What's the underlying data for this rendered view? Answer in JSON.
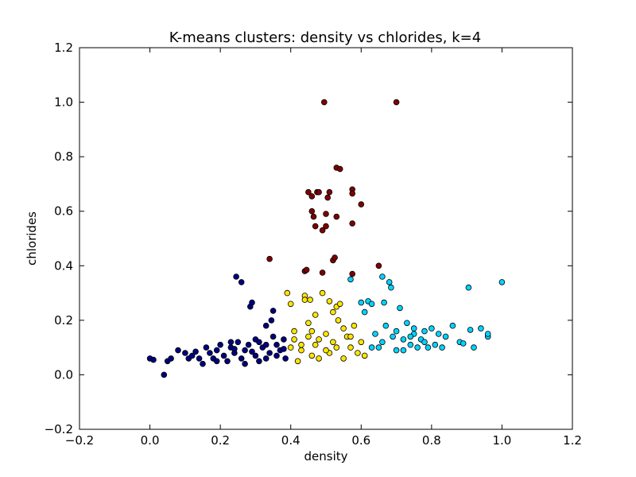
{
  "chart_data": {
    "type": "scatter",
    "title": "K-means clusters: density vs chlorides, k=4",
    "xlabel": "density",
    "ylabel": "chlorides",
    "xlim": [
      -0.2,
      1.2
    ],
    "ylim": [
      -0.2,
      1.2
    ],
    "xticks": [
      "−0.2",
      "0.0",
      "0.2",
      "0.4",
      "0.6",
      "0.8",
      "1.0",
      "1.2"
    ],
    "yticks": [
      "−0.2",
      "0.0",
      "0.2",
      "0.4",
      "0.6",
      "0.8",
      "1.0",
      "1.2"
    ],
    "grid": false,
    "series": [
      {
        "color": "#00007f",
        "points": [
          [
            0.0,
            0.06
          ],
          [
            0.01,
            0.055
          ],
          [
            0.04,
            0.0
          ],
          [
            0.05,
            0.05
          ],
          [
            0.06,
            0.06
          ],
          [
            0.08,
            0.09
          ],
          [
            0.1,
            0.08
          ],
          [
            0.11,
            0.06
          ],
          [
            0.12,
            0.07
          ],
          [
            0.13,
            0.085
          ],
          [
            0.14,
            0.06
          ],
          [
            0.15,
            0.04
          ],
          [
            0.16,
            0.1
          ],
          [
            0.17,
            0.08
          ],
          [
            0.18,
            0.06
          ],
          [
            0.19,
            0.09
          ],
          [
            0.2,
            0.11
          ],
          [
            0.21,
            0.07
          ],
          [
            0.22,
            0.05
          ],
          [
            0.23,
            0.1
          ],
          [
            0.24,
            0.08
          ],
          [
            0.245,
            0.36
          ],
          [
            0.25,
            0.12
          ],
          [
            0.26,
            0.34
          ],
          [
            0.26,
            0.06
          ],
          [
            0.27,
            0.09
          ],
          [
            0.28,
            0.11
          ],
          [
            0.285,
            0.25
          ],
          [
            0.29,
            0.265
          ],
          [
            0.3,
            0.07
          ],
          [
            0.31,
            0.12
          ],
          [
            0.32,
            0.1
          ],
          [
            0.33,
            0.18
          ],
          [
            0.33,
            0.06
          ],
          [
            0.34,
            0.08
          ],
          [
            0.345,
            0.2
          ],
          [
            0.35,
            0.235
          ],
          [
            0.35,
            0.14
          ],
          [
            0.36,
            0.11
          ],
          [
            0.37,
            0.09
          ],
          [
            0.38,
            0.13
          ],
          [
            0.385,
            0.06
          ],
          [
            0.29,
            0.085
          ],
          [
            0.31,
            0.05
          ],
          [
            0.23,
            0.12
          ],
          [
            0.27,
            0.04
          ],
          [
            0.19,
            0.05
          ],
          [
            0.24,
            0.095
          ],
          [
            0.33,
            0.11
          ],
          [
            0.36,
            0.07
          ],
          [
            0.38,
            0.095
          ],
          [
            0.3,
            0.13
          ]
        ]
      },
      {
        "color": "#ffe600",
        "points": [
          [
            0.39,
            0.3
          ],
          [
            0.4,
            0.26
          ],
          [
            0.41,
            0.13
          ],
          [
            0.42,
            0.05
          ],
          [
            0.43,
            0.09
          ],
          [
            0.44,
            0.29
          ],
          [
            0.44,
            0.275
          ],
          [
            0.45,
            0.14
          ],
          [
            0.455,
            0.275
          ],
          [
            0.46,
            0.07
          ],
          [
            0.47,
            0.11
          ],
          [
            0.48,
            0.06
          ],
          [
            0.49,
            0.3
          ],
          [
            0.5,
            0.15
          ],
          [
            0.51,
            0.27
          ],
          [
            0.51,
            0.08
          ],
          [
            0.52,
            0.12
          ],
          [
            0.53,
            0.25
          ],
          [
            0.535,
            0.2
          ],
          [
            0.54,
            0.26
          ],
          [
            0.55,
            0.06
          ],
          [
            0.56,
            0.14
          ],
          [
            0.57,
            0.1
          ],
          [
            0.58,
            0.18
          ],
          [
            0.59,
            0.08
          ],
          [
            0.6,
            0.12
          ],
          [
            0.61,
            0.07
          ],
          [
            0.45,
            0.19
          ],
          [
            0.47,
            0.22
          ],
          [
            0.52,
            0.23
          ],
          [
            0.41,
            0.16
          ],
          [
            0.43,
            0.11
          ],
          [
            0.48,
            0.13
          ],
          [
            0.5,
            0.09
          ],
          [
            0.53,
            0.1
          ],
          [
            0.55,
            0.17
          ],
          [
            0.4,
            0.1
          ],
          [
            0.46,
            0.16
          ],
          [
            0.57,
            0.14
          ]
        ]
      },
      {
        "color": "#00d4ff",
        "points": [
          [
            0.57,
            0.35
          ],
          [
            0.6,
            0.265
          ],
          [
            0.61,
            0.23
          ],
          [
            0.62,
            0.27
          ],
          [
            0.63,
            0.26
          ],
          [
            0.64,
            0.15
          ],
          [
            0.65,
            0.1
          ],
          [
            0.66,
            0.36
          ],
          [
            0.665,
            0.265
          ],
          [
            0.68,
            0.34
          ],
          [
            0.685,
            0.32
          ],
          [
            0.69,
            0.14
          ],
          [
            0.7,
            0.09
          ],
          [
            0.71,
            0.245
          ],
          [
            0.72,
            0.13
          ],
          [
            0.73,
            0.19
          ],
          [
            0.74,
            0.11
          ],
          [
            0.75,
            0.15
          ],
          [
            0.76,
            0.1
          ],
          [
            0.77,
            0.13
          ],
          [
            0.78,
            0.12
          ],
          [
            0.79,
            0.1
          ],
          [
            0.8,
            0.17
          ],
          [
            0.82,
            0.15
          ],
          [
            0.83,
            0.1
          ],
          [
            0.84,
            0.14
          ],
          [
            0.86,
            0.18
          ],
          [
            0.88,
            0.12
          ],
          [
            0.89,
            0.115
          ],
          [
            0.905,
            0.32
          ],
          [
            0.91,
            0.165
          ],
          [
            0.92,
            0.1
          ],
          [
            0.94,
            0.17
          ],
          [
            0.96,
            0.14
          ],
          [
            1.0,
            0.34
          ],
          [
            0.63,
            0.1
          ],
          [
            0.67,
            0.18
          ],
          [
            0.72,
            0.09
          ],
          [
            0.75,
            0.17
          ],
          [
            0.81,
            0.11
          ],
          [
            0.96,
            0.15
          ],
          [
            0.66,
            0.12
          ],
          [
            0.7,
            0.16
          ],
          [
            0.74,
            0.14
          ],
          [
            0.78,
            0.16
          ]
        ]
      },
      {
        "color": "#7f0000",
        "points": [
          [
            0.34,
            0.425
          ],
          [
            0.44,
            0.38
          ],
          [
            0.445,
            0.385
          ],
          [
            0.45,
            0.67
          ],
          [
            0.46,
            0.655
          ],
          [
            0.46,
            0.6
          ],
          [
            0.465,
            0.58
          ],
          [
            0.47,
            0.545
          ],
          [
            0.475,
            0.67
          ],
          [
            0.48,
            0.67
          ],
          [
            0.49,
            0.53
          ],
          [
            0.49,
            0.375
          ],
          [
            0.495,
            1.0
          ],
          [
            0.5,
            0.59
          ],
          [
            0.5,
            0.545
          ],
          [
            0.505,
            0.65
          ],
          [
            0.51,
            0.67
          ],
          [
            0.52,
            0.42
          ],
          [
            0.525,
            0.43
          ],
          [
            0.53,
            0.58
          ],
          [
            0.53,
            0.76
          ],
          [
            0.54,
            0.755
          ],
          [
            0.575,
            0.68
          ],
          [
            0.575,
            0.665
          ],
          [
            0.575,
            0.555
          ],
          [
            0.575,
            0.37
          ],
          [
            0.6,
            0.625
          ],
          [
            0.65,
            0.4
          ],
          [
            0.7,
            1.0
          ]
        ]
      }
    ]
  }
}
